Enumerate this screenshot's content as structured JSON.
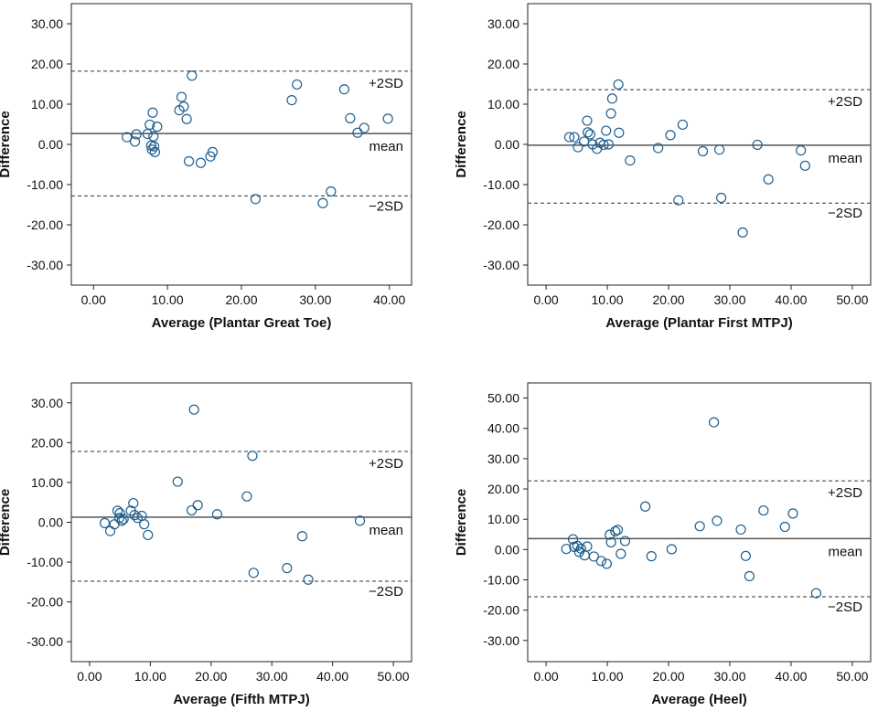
{
  "chart_data": [
    {
      "type": "scatter",
      "title": "",
      "xlabel": "Average (Plantar Great Toe)",
      "ylabel": "Difference",
      "xlim": [
        -3,
        43
      ],
      "ylim": [
        -35,
        35
      ],
      "xticks": [
        0,
        10,
        20,
        30,
        40
      ],
      "xtick_labels": [
        "0.00",
        "10.00",
        "20.00",
        "30.00",
        "40.00"
      ],
      "yticks": [
        -30,
        -20,
        -10,
        0,
        10,
        20,
        30
      ],
      "ytick_labels": [
        "-30.00",
        "-20.00",
        "-10.00",
        "0.00",
        "10.00",
        "20.00",
        "30.00"
      ],
      "mean": 2.7,
      "upper": 18.2,
      "lower": -12.8,
      "upper_label": "+2SD",
      "mean_label": "mean",
      "lower_label": "−2SD",
      "points": [
        [
          4.5,
          1.8
        ],
        [
          5.6,
          0.7
        ],
        [
          5.8,
          2.5
        ],
        [
          7.3,
          2.6
        ],
        [
          7.6,
          4.9
        ],
        [
          7.8,
          -0.3
        ],
        [
          7.9,
          -1.3
        ],
        [
          8.0,
          7.9
        ],
        [
          8.1,
          2.0
        ],
        [
          8.2,
          -0.5
        ],
        [
          8.3,
          -1.9
        ],
        [
          8.6,
          4.4
        ],
        [
          11.6,
          8.5
        ],
        [
          11.9,
          11.8
        ],
        [
          12.2,
          9.4
        ],
        [
          12.6,
          6.3
        ],
        [
          12.9,
          -4.2
        ],
        [
          13.3,
          17.1
        ],
        [
          14.5,
          -4.6
        ],
        [
          15.8,
          -3.0
        ],
        [
          16.1,
          -1.9
        ],
        [
          21.9,
          -13.6
        ],
        [
          26.8,
          11.0
        ],
        [
          27.5,
          14.9
        ],
        [
          31.0,
          -14.6
        ],
        [
          32.1,
          -11.7
        ],
        [
          33.9,
          13.7
        ],
        [
          34.7,
          6.5
        ],
        [
          35.7,
          2.9
        ],
        [
          36.6,
          4.1
        ],
        [
          39.8,
          6.4
        ]
      ]
    },
    {
      "type": "scatter",
      "title": "",
      "xlabel": "Average (Plantar First MTPJ)",
      "ylabel": "Difference",
      "xlim": [
        -3,
        53
      ],
      "ylim": [
        -35,
        35
      ],
      "xticks": [
        0,
        10,
        20,
        30,
        40,
        50
      ],
      "xtick_labels": [
        "0.00",
        "10.00",
        "20.00",
        "30.00",
        "40.00",
        "50.00"
      ],
      "yticks": [
        -30,
        -20,
        -10,
        0,
        10,
        20,
        30
      ],
      "ytick_labels": [
        "-30.00",
        "-20.00",
        "-10.00",
        "0.00",
        "10.00",
        "20.00",
        "30.00"
      ],
      "mean": -0.2,
      "upper": 13.6,
      "lower": -14.6,
      "upper_label": "+2SD",
      "mean_label": "mean",
      "lower_label": "−2SD",
      "points": [
        [
          3.8,
          1.8
        ],
        [
          4.6,
          1.8
        ],
        [
          5.2,
          -0.7
        ],
        [
          6.2,
          0.7
        ],
        [
          6.7,
          5.9
        ],
        [
          6.8,
          3.0
        ],
        [
          7.2,
          2.5
        ],
        [
          7.6,
          0.0
        ],
        [
          8.3,
          -1.1
        ],
        [
          8.8,
          0.4
        ],
        [
          9.4,
          -0.1
        ],
        [
          9.8,
          3.4
        ],
        [
          10.2,
          0.0
        ],
        [
          10.6,
          7.7
        ],
        [
          10.8,
          11.4
        ],
        [
          11.8,
          14.9
        ],
        [
          11.9,
          2.9
        ],
        [
          13.7,
          -4.0
        ],
        [
          18.3,
          -0.9
        ],
        [
          20.3,
          2.3
        ],
        [
          21.6,
          -13.9
        ],
        [
          22.3,
          4.9
        ],
        [
          25.6,
          -1.7
        ],
        [
          28.3,
          -1.3
        ],
        [
          28.6,
          -13.3
        ],
        [
          32.1,
          -21.9
        ],
        [
          34.5,
          -0.1
        ],
        [
          36.3,
          -8.7
        ],
        [
          41.6,
          -1.5
        ],
        [
          42.3,
          -5.3
        ]
      ]
    },
    {
      "type": "scatter",
      "title": "",
      "xlabel": "Average (Fifth MTPJ)",
      "ylabel": "Difference",
      "xlim": [
        -3,
        53
      ],
      "ylim": [
        -35,
        35
      ],
      "xticks": [
        0,
        10,
        20,
        30,
        40,
        50
      ],
      "xtick_labels": [
        "0.00",
        "10.00",
        "20.00",
        "30.00",
        "40.00",
        "50.00"
      ],
      "yticks": [
        -30,
        -20,
        -10,
        0,
        10,
        20,
        30
      ],
      "ytick_labels": [
        "-30.00",
        "-20.00",
        "-10.00",
        "0.00",
        "10.00",
        "20.00",
        "30.00"
      ],
      "mean": 1.3,
      "upper": 17.8,
      "lower": -14.8,
      "upper_label": "+2SD",
      "mean_label": "mean",
      "lower_label": "−2SD",
      "points": [
        [
          2.5,
          -0.2
        ],
        [
          3.4,
          -2.2
        ],
        [
          4.1,
          -0.5
        ],
        [
          4.6,
          2.9
        ],
        [
          4.9,
          1.1
        ],
        [
          5.0,
          2.3
        ],
        [
          5.3,
          0.4
        ],
        [
          5.6,
          0.8
        ],
        [
          6.8,
          2.9
        ],
        [
          7.2,
          4.8
        ],
        [
          7.4,
          1.8
        ],
        [
          7.9,
          1.1
        ],
        [
          8.6,
          1.6
        ],
        [
          9.0,
          -0.5
        ],
        [
          9.6,
          -3.2
        ],
        [
          14.5,
          10.2
        ],
        [
          16.8,
          3.0
        ],
        [
          17.2,
          28.3
        ],
        [
          17.8,
          4.3
        ],
        [
          21.0,
          2.0
        ],
        [
          25.9,
          6.5
        ],
        [
          26.8,
          16.7
        ],
        [
          27.0,
          -12.7
        ],
        [
          32.5,
          -11.5
        ],
        [
          35.0,
          -3.5
        ],
        [
          36.0,
          -14.4
        ],
        [
          44.5,
          0.4
        ]
      ]
    },
    {
      "type": "scatter",
      "title": "",
      "xlabel": "Average (Heel)",
      "ylabel": "Difference",
      "xlim": [
        -3,
        53
      ],
      "ylim": [
        -37,
        55
      ],
      "xticks": [
        0,
        10,
        20,
        30,
        40,
        50
      ],
      "xtick_labels": [
        "0.00",
        "10.00",
        "20.00",
        "30.00",
        "40.00",
        "50.00"
      ],
      "yticks": [
        -30,
        -20,
        -10,
        0,
        10,
        20,
        30,
        40,
        50
      ],
      "ytick_labels": [
        "-30.00",
        "-20.00",
        "-10.00",
        "0.00",
        "10.00",
        "20.00",
        "30.00",
        "40.00",
        "50.00"
      ],
      "mean": 3.6,
      "upper": 22.7,
      "lower": -15.6,
      "upper_label": "+2SD",
      "mean_label": "mean",
      "lower_label": "−2SD",
      "points": [
        [
          3.3,
          0.2
        ],
        [
          4.4,
          3.4
        ],
        [
          4.6,
          0.9
        ],
        [
          5.1,
          1.2
        ],
        [
          5.4,
          -0.8
        ],
        [
          5.7,
          0.3
        ],
        [
          6.3,
          -1.9
        ],
        [
          6.7,
          1.0
        ],
        [
          7.8,
          -2.3
        ],
        [
          9.0,
          -3.8
        ],
        [
          9.9,
          -4.7
        ],
        [
          10.4,
          4.9
        ],
        [
          10.6,
          2.4
        ],
        [
          11.3,
          6.0
        ],
        [
          11.7,
          6.5
        ],
        [
          12.2,
          -1.4
        ],
        [
          12.9,
          2.8
        ],
        [
          16.2,
          14.2
        ],
        [
          17.2,
          -2.2
        ],
        [
          20.5,
          0.1
        ],
        [
          25.1,
          7.7
        ],
        [
          27.4,
          42.0
        ],
        [
          27.9,
          9.5
        ],
        [
          31.8,
          6.6
        ],
        [
          32.6,
          -2.1
        ],
        [
          33.2,
          -8.8
        ],
        [
          35.5,
          12.9
        ],
        [
          39.0,
          7.5
        ],
        [
          40.3,
          11.9
        ],
        [
          44.1,
          -14.4
        ]
      ]
    }
  ]
}
